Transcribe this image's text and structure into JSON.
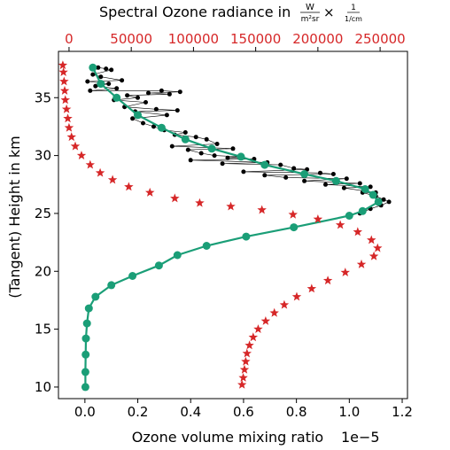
{
  "chart_data": {
    "type": "scatter",
    "title": "",
    "xlabel": "Ozone volume mixing ratio",
    "xlabel_top": "Spectral Ozone radiance in",
    "xlabel_top_units": {
      "main": "W",
      "denominator": "m²sr",
      "times": "×",
      "sub": "1",
      "sub_denominator": "1/cm"
    },
    "ylabel": "(Tangent) Height in km",
    "x_offset_text": "1e−5",
    "xlim": [
      -1e-06,
      1.22e-05
    ],
    "ylim": [
      9.0,
      39.0
    ],
    "xlim_top": [
      -8500,
      272000
    ],
    "x_ticks": [
      0.0,
      2e-06,
      4e-06,
      6e-06,
      8e-06,
      1e-05,
      1.2e-05
    ],
    "x_tick_labels": [
      "0.0",
      "0.2",
      "0.4",
      "0.6",
      "0.8",
      "1.0",
      "1.2"
    ],
    "y_ticks": [
      10,
      15,
      20,
      25,
      30,
      35
    ],
    "y_tick_labels": [
      "10",
      "15",
      "20",
      "25",
      "30",
      "35"
    ],
    "x_top_ticks": [
      0,
      50000,
      100000,
      150000,
      200000,
      250000
    ],
    "x_top_tick_labels": [
      "0",
      "50000",
      "100000",
      "150000",
      "200000",
      "250000"
    ],
    "grid": false,
    "colors": {
      "profiles": "#000000",
      "mean": "#1a9e77",
      "radiance": "#d62728",
      "top_axis_text": "#d62728"
    },
    "series": [
      {
        "role": "individual-profiles",
        "axis": "bottom",
        "marker": "dot",
        "points": [
          [
            5e-07,
            37.6
          ],
          [
            8e-07,
            37.5
          ],
          [
            1e-06,
            37.4
          ],
          [
            3e-07,
            37.0
          ],
          [
            1e-07,
            36.4
          ],
          [
            4e-07,
            36.0
          ],
          [
            2e-07,
            35.6
          ],
          [
            6e-07,
            36.8
          ],
          [
            9e-07,
            36.2
          ],
          [
            1.2e-06,
            35.8
          ],
          [
            1.4e-06,
            36.5
          ],
          [
            1.6e-06,
            35.2
          ],
          [
            2e-06,
            35.0
          ],
          [
            2.4e-06,
            35.4
          ],
          [
            2.9e-06,
            35.6
          ],
          [
            3.2e-06,
            35.3
          ],
          [
            3.6e-06,
            35.5
          ],
          [
            1.1e-06,
            34.8
          ],
          [
            1.5e-06,
            34.2
          ],
          [
            1.9e-06,
            33.8
          ],
          [
            2.3e-06,
            34.6
          ],
          [
            2.7e-06,
            34.0
          ],
          [
            3.1e-06,
            33.5
          ],
          [
            3.5e-06,
            33.9
          ],
          [
            1.8e-06,
            33.2
          ],
          [
            2.2e-06,
            32.8
          ],
          [
            2.6e-06,
            32.5
          ],
          [
            3e-06,
            32.2
          ],
          [
            3.4e-06,
            31.8
          ],
          [
            3.8e-06,
            32.0
          ],
          [
            4.2e-06,
            31.6
          ],
          [
            4.6e-06,
            31.4
          ],
          [
            5e-06,
            31.0
          ],
          [
            3.3e-06,
            30.8
          ],
          [
            3.9e-06,
            30.5
          ],
          [
            4.4e-06,
            30.2
          ],
          [
            4.9e-06,
            30.0
          ],
          [
            5.4e-06,
            29.8
          ],
          [
            5.9e-06,
            29.9
          ],
          [
            6.4e-06,
            29.7
          ],
          [
            6.9e-06,
            29.4
          ],
          [
            7.4e-06,
            29.2
          ],
          [
            7.9e-06,
            28.9
          ],
          [
            8.4e-06,
            28.8
          ],
          [
            8.9e-06,
            28.5
          ],
          [
            9.4e-06,
            28.4
          ],
          [
            9.9e-06,
            28.0
          ],
          [
            1.04e-05,
            27.6
          ],
          [
            1.08e-05,
            27.3
          ],
          [
            1.1e-05,
            26.8
          ],
          [
            1.13e-05,
            26.2
          ],
          [
            1.15e-05,
            26.0
          ],
          [
            1.12e-05,
            25.7
          ],
          [
            1.08e-05,
            25.4
          ],
          [
            1.04e-05,
            25.0
          ],
          [
            6e-06,
            28.6
          ],
          [
            6.8e-06,
            28.3
          ],
          [
            7.6e-06,
            28.1
          ],
          [
            8.3e-06,
            27.8
          ],
          [
            9.1e-06,
            27.5
          ],
          [
            9.8e-06,
            27.2
          ],
          [
            1.05e-05,
            26.8
          ],
          [
            1.1e-05,
            26.5
          ],
          [
            5.2e-06,
            29.3
          ],
          [
            4e-06,
            29.6
          ],
          [
            5.6e-06,
            30.6
          ]
        ]
      },
      {
        "role": "mean-profile",
        "axis": "bottom",
        "marker": "circle",
        "points": [
          [
            2e-08,
            10.0
          ],
          [
            2e-08,
            11.3
          ],
          [
            3e-08,
            12.8
          ],
          [
            4e-08,
            14.2
          ],
          [
            8e-08,
            15.5
          ],
          [
            1.5e-07,
            16.8
          ],
          [
            4e-07,
            17.8
          ],
          [
            1e-06,
            18.8
          ],
          [
            1.8e-06,
            19.6
          ],
          [
            2.8e-06,
            20.5
          ],
          [
            3.5e-06,
            21.4
          ],
          [
            4.6e-06,
            22.2
          ],
          [
            6.1e-06,
            23.0
          ],
          [
            7.9e-06,
            23.8
          ],
          [
            1e-05,
            24.8
          ],
          [
            1.05e-05,
            25.2
          ],
          [
            1.11e-05,
            26.0
          ],
          [
            1.09e-05,
            26.6
          ],
          [
            1.06e-05,
            27.1
          ],
          [
            9.5e-06,
            27.8
          ],
          [
            8.3e-06,
            28.4
          ],
          [
            6.8e-06,
            29.2
          ],
          [
            5.9e-06,
            29.9
          ],
          [
            4.8e-06,
            30.6
          ],
          [
            3.8e-06,
            31.4
          ],
          [
            2.9e-06,
            32.4
          ],
          [
            2e-06,
            33.5
          ],
          [
            1.2e-06,
            35.0
          ],
          [
            6e-07,
            36.2
          ],
          [
            3e-07,
            37.6
          ]
        ]
      },
      {
        "role": "radiance",
        "axis": "top",
        "marker": "star",
        "points": [
          [
            139000,
            10.2
          ],
          [
            140000,
            10.8
          ],
          [
            141000,
            11.5
          ],
          [
            142000,
            12.2
          ],
          [
            143000,
            12.9
          ],
          [
            145000,
            13.6
          ],
          [
            148000,
            14.3
          ],
          [
            152000,
            15.0
          ],
          [
            158000,
            15.7
          ],
          [
            165000,
            16.4
          ],
          [
            173000,
            17.1
          ],
          [
            183000,
            17.8
          ],
          [
            195000,
            18.5
          ],
          [
            208000,
            19.2
          ],
          [
            222000,
            19.9
          ],
          [
            235000,
            20.6
          ],
          [
            245000,
            21.3
          ],
          [
            248000,
            22.0
          ],
          [
            243000,
            22.7
          ],
          [
            232000,
            23.4
          ],
          [
            218000,
            24.0
          ],
          [
            200000,
            24.5
          ],
          [
            180000,
            24.9
          ],
          [
            155000,
            25.3
          ],
          [
            130000,
            25.6
          ],
          [
            105000,
            25.9
          ],
          [
            85000,
            26.3
          ],
          [
            65000,
            26.8
          ],
          [
            48000,
            27.3
          ],
          [
            35000,
            27.9
          ],
          [
            25000,
            28.5
          ],
          [
            17000,
            29.2
          ],
          [
            10000,
            30.0
          ],
          [
            5000,
            30.8
          ],
          [
            2000,
            31.6
          ],
          [
            0,
            32.4
          ],
          [
            -1000,
            33.2
          ],
          [
            -2000,
            34.0
          ],
          [
            -3000,
            34.8
          ],
          [
            -3500,
            35.6
          ],
          [
            -4000,
            36.4
          ],
          [
            -4500,
            37.2
          ],
          [
            -5000,
            37.8
          ]
        ]
      }
    ]
  }
}
